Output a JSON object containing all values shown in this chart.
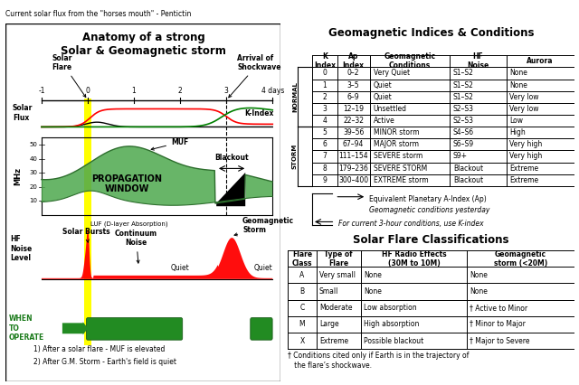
{
  "title_top": "Current solar flux from the \"horses mouth\" - Pentictin",
  "left_chart_title": "Anatomy of a strong\nSolar & Geomagnetic storm",
  "geomag_table": {
    "title": "Geomagnetic Indices & Conditions",
    "headers": [
      "K\nIndex",
      "Ap\nIndex",
      "Geomagnetic\nConditions",
      "HF\nNoise",
      "Aurora"
    ],
    "normal_rows": [
      [
        "0",
        "0–2",
        "Very Quiet",
        "S1–S2",
        "None"
      ],
      [
        "1",
        "3–5",
        "Quiet",
        "S1–S2",
        "None"
      ],
      [
        "2",
        "6–9",
        "Quiet",
        "S1–S2",
        "Very low"
      ],
      [
        "3",
        "12–19",
        "Unsettled",
        "S2–S3",
        "Very low"
      ],
      [
        "4",
        "22–32",
        "Active",
        "S2–S3",
        "Low"
      ]
    ],
    "storm_rows": [
      [
        "5",
        "39–56",
        "MINOR storm",
        "S4–S6",
        "High"
      ],
      [
        "6",
        "67–94",
        "MAJOR storm",
        "S6–S9",
        "Very high"
      ],
      [
        "7",
        "111–154",
        "SEVERE storm",
        "S9+",
        "Very high"
      ],
      [
        "8",
        "179–236",
        "SEVERE STORM",
        "Blackout",
        "Extreme"
      ],
      [
        "9",
        "300–400",
        "EXTREME storm",
        "Blackout",
        "Extreme"
      ]
    ]
  },
  "flare_table": {
    "title": "Solar Flare Classifications",
    "headers": [
      "Flare\nClass",
      "Type of\nFlare",
      "HF Radio Effects\n(30M to 10M)",
      "Geomagnetic\nstorm (<20M)"
    ],
    "rows": [
      [
        "A",
        "Very small",
        "None",
        "None"
      ],
      [
        "B",
        "Small",
        "None",
        "None"
      ],
      [
        "C",
        "Moderate",
        "Low absorption",
        "† Active to Minor"
      ],
      [
        "M",
        "Large",
        "High absorption",
        "† Minor to Major"
      ],
      [
        "X",
        "Extreme",
        "Possible blackout",
        "† Major to Severe"
      ]
    ],
    "footnote": "† Conditions cited only if Earth is in the trajectory of\n   the flare’s shockwave."
  }
}
